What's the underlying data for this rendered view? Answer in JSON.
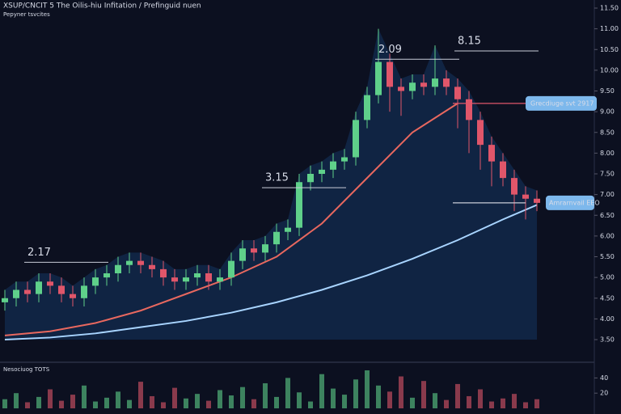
{
  "chart_data": {
    "type": "candlestick",
    "title": "XSUP/CNCIT 5  The Oilis-hiu Infitation / Prefinguid nuen",
    "subtitle": "Pepyner tsvcites",
    "ylim": [
      3.5,
      11.5
    ],
    "yticks": [
      {
        "value": 11.5,
        "label": "11.50"
      },
      {
        "value": 11,
        "label": "11.00"
      },
      {
        "value": 10.5,
        "label": "10.50"
      },
      {
        "value": 10,
        "label": "10.00"
      },
      {
        "value": 9.5,
        "label": "9.50"
      },
      {
        "value": 9,
        "label": "9.00"
      },
      {
        "value": 8.5,
        "label": "8.50"
      },
      {
        "value": 8,
        "label": "8.00"
      },
      {
        "value": 7.5,
        "label": "7.50"
      },
      {
        "value": 7,
        "label": "7.00"
      },
      {
        "value": 6.5,
        "label": "6.50"
      },
      {
        "value": 6,
        "label": "6.00"
      },
      {
        "value": 5.5,
        "label": "5.50"
      },
      {
        "value": 5,
        "label": "5.00"
      },
      {
        "value": 4.5,
        "label": "4.50"
      },
      {
        "value": 4,
        "label": "4.00"
      },
      {
        "value": 3.5,
        "label": "3.50"
      }
    ],
    "up_color": "#5fd08a",
    "down_color": "#e0566a",
    "open": [
      4.4,
      4.5,
      4.7,
      4.6,
      4.9,
      4.8,
      4.6,
      4.5,
      4.8,
      5.0,
      5.1,
      5.3,
      5.4,
      5.3,
      5.2,
      5.0,
      4.9,
      5.0,
      5.1,
      4.9,
      5.0,
      5.4,
      5.7,
      5.6,
      5.8,
      6.1,
      6.2,
      7.3,
      7.5,
      7.6,
      7.8,
      7.9,
      8.8,
      9.4,
      10.2,
      9.6,
      9.5,
      9.7,
      9.6,
      9.8,
      9.6,
      9.3,
      8.8,
      8.2,
      7.8,
      7.4,
      7.0,
      6.9
    ],
    "high": [
      4.7,
      4.9,
      4.9,
      5.1,
      5.1,
      5.0,
      4.8,
      5.0,
      5.2,
      5.3,
      5.5,
      5.6,
      5.6,
      5.5,
      5.4,
      5.2,
      5.2,
      5.3,
      5.3,
      5.2,
      5.6,
      5.9,
      5.9,
      6.0,
      6.3,
      6.4,
      7.5,
      7.7,
      7.8,
      8.0,
      8.1,
      9.0,
      9.6,
      11.0,
      10.4,
      9.8,
      9.9,
      9.9,
      10.6,
      10.0,
      9.8,
      9.5,
      9.0,
      8.4,
      8.0,
      7.6,
      7.2,
      7.1
    ],
    "low": [
      4.2,
      4.3,
      4.4,
      4.4,
      4.6,
      4.4,
      4.3,
      4.3,
      4.6,
      4.8,
      4.9,
      5.1,
      5.1,
      5.0,
      4.8,
      4.7,
      4.7,
      4.8,
      4.7,
      4.7,
      4.8,
      5.2,
      5.4,
      5.4,
      5.6,
      5.9,
      6.0,
      7.1,
      7.3,
      7.4,
      7.6,
      7.7,
      8.6,
      9.2,
      9.0,
      8.9,
      9.3,
      9.4,
      9.4,
      9.4,
      8.6,
      8.0,
      7.6,
      7.2,
      7.2,
      6.6,
      6.4,
      6.6
    ],
    "close": [
      4.5,
      4.7,
      4.6,
      4.9,
      4.8,
      4.6,
      4.5,
      4.8,
      5.0,
      5.1,
      5.3,
      5.4,
      5.3,
      5.2,
      5.0,
      4.9,
      5.0,
      5.1,
      4.9,
      5.0,
      5.4,
      5.7,
      5.6,
      5.8,
      6.1,
      6.2,
      7.3,
      7.5,
      7.6,
      7.8,
      7.9,
      8.8,
      9.4,
      10.2,
      9.6,
      9.5,
      9.7,
      9.6,
      9.8,
      9.6,
      9.3,
      8.8,
      8.2,
      7.8,
      7.4,
      7.0,
      6.9,
      6.8
    ],
    "overlays": [
      {
        "color": "#e8685f",
        "x": [
          0,
          4,
          8,
          12,
          16,
          20,
          24,
          28,
          32,
          36,
          40,
          44,
          47
        ],
        "values": [
          3.6,
          3.7,
          3.9,
          4.2,
          4.6,
          5.0,
          5.5,
          6.3,
          7.4,
          8.5,
          9.2,
          null,
          null
        ]
      },
      {
        "color": "#a8d4ff",
        "x": [
          0,
          4,
          8,
          12,
          16,
          20,
          24,
          28,
          32,
          36,
          40,
          44,
          47
        ],
        "values": [
          3.5,
          3.55,
          3.65,
          3.8,
          3.95,
          4.15,
          4.4,
          4.7,
          5.05,
          5.45,
          5.9,
          6.4,
          6.75
        ]
      }
    ],
    "annotations": [
      {
        "text": "2.09",
        "x": 33,
        "y": 10.5
      },
      {
        "text": "8.15",
        "x": 40,
        "y": 10.7
      },
      {
        "text": "3.15",
        "x": 23,
        "y": 7.4
      },
      {
        "text": "2.17",
        "x": 2,
        "y": 5.6
      }
    ],
    "badges": [
      {
        "text": "Grecdiuge svt 2917",
        "y": 9.2
      },
      {
        "text": "Amrarnvail EEO",
        "y": 6.8
      }
    ],
    "volume_label": "Nesociuog TOTS",
    "volume": [
      12,
      20,
      8,
      15,
      25,
      10,
      18,
      30,
      9,
      14,
      22,
      11,
      35,
      16,
      8,
      27,
      13,
      19,
      10,
      24,
      17,
      28,
      12,
      33,
      15,
      40,
      21,
      9,
      45,
      26,
      18,
      38,
      50,
      30,
      22,
      42,
      14,
      36,
      20,
      11,
      32,
      16,
      25,
      9,
      13,
      19,
      8,
      12
    ],
    "volume_ylim": [
      0,
      50
    ],
    "volume_yticks": [
      40,
      20
    ]
  }
}
